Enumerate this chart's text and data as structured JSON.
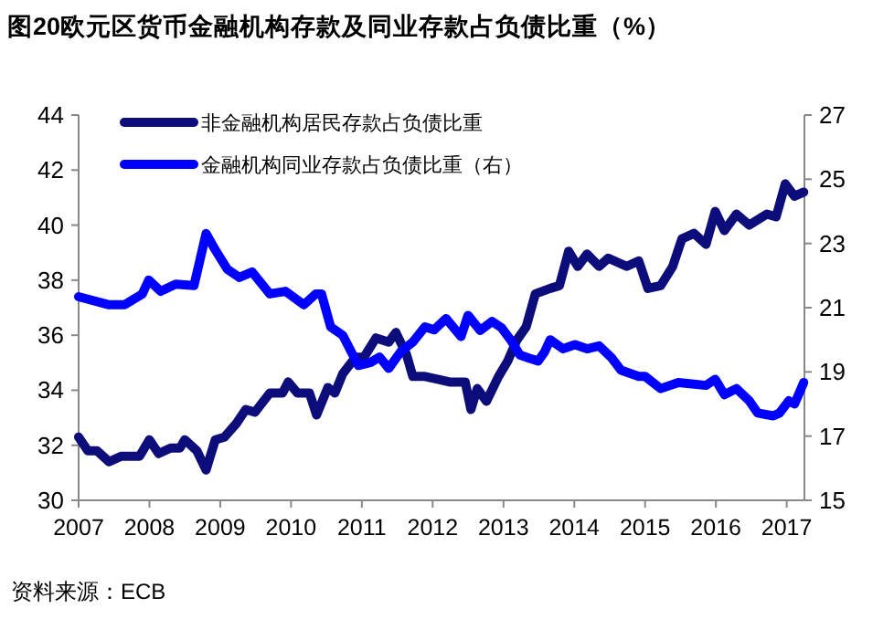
{
  "chart_data": {
    "type": "line",
    "title": "图20欧元区货币金融机构存款及同业存款占负债比重（%）",
    "annotations": [
      "资料来源：ECB"
    ],
    "xlim": [
      2007,
      2017.25
    ],
    "xticks": [
      2007,
      2008,
      2009,
      2010,
      2011,
      2012,
      2013,
      2014,
      2015,
      2016,
      2017
    ],
    "ylim": [
      30,
      44
    ],
    "yticks": [
      30,
      32,
      34,
      36,
      38,
      40,
      42,
      44
    ],
    "y2lim": [
      15,
      27
    ],
    "y2ticks": [
      15,
      17,
      19,
      21,
      23,
      25,
      27
    ],
    "legend": "top left",
    "series": [
      {
        "name": "非金融机构居民存款占负债比重",
        "color": "#0c0c7a",
        "x": [
          2007.0,
          2007.13,
          2007.26,
          2007.43,
          2007.6,
          2007.86,
          2008.0,
          2008.13,
          2008.3,
          2008.43,
          2008.5,
          2008.67,
          2008.8,
          2008.93,
          2009.06,
          2009.23,
          2009.36,
          2009.49,
          2009.7,
          2009.88,
          2009.96,
          2010.09,
          2010.26,
          2010.36,
          2010.52,
          2010.62,
          2010.73,
          2010.91,
          2011.03,
          2011.2,
          2011.38,
          2011.48,
          2011.63,
          2011.72,
          2011.89,
          2012.07,
          2012.24,
          2012.46,
          2012.54,
          2012.63,
          2012.76,
          2012.93,
          2013.06,
          2013.19,
          2013.32,
          2013.45,
          2013.66,
          2013.79,
          2013.92,
          2014.05,
          2014.18,
          2014.35,
          2014.48,
          2014.74,
          2014.91,
          2015.04,
          2015.22,
          2015.39,
          2015.52,
          2015.69,
          2015.86,
          2015.99,
          2016.12,
          2016.29,
          2016.47,
          2016.72,
          2016.85,
          2016.98,
          2017.11,
          2017.24
        ],
        "values": [
          32.3,
          31.8,
          31.8,
          31.4,
          31.6,
          31.6,
          32.2,
          31.7,
          31.9,
          31.9,
          32.2,
          31.8,
          31.1,
          32.2,
          32.3,
          32.8,
          33.3,
          33.2,
          33.9,
          33.9,
          34.3,
          33.9,
          33.9,
          33.1,
          34.1,
          33.9,
          34.6,
          35.2,
          35.2,
          35.9,
          35.75,
          36.1,
          35.3,
          34.5,
          34.5,
          34.4,
          34.3,
          34.3,
          33.3,
          34.06,
          33.6,
          34.5,
          35.06,
          35.83,
          36.3,
          37.5,
          37.7,
          37.8,
          39.05,
          38.5,
          38.95,
          38.5,
          38.8,
          38.5,
          38.7,
          37.7,
          37.8,
          38.5,
          39.5,
          39.7,
          39.3,
          40.5,
          39.8,
          40.4,
          40.0,
          40.4,
          40.3,
          41.5,
          41.05,
          41.2
        ]
      },
      {
        "name": "金融机构同业存款占负债比重（右）",
        "color": "#0000ff",
        "axis": "y2",
        "x": [
          2007.0,
          2007.43,
          2007.65,
          2007.9,
          2007.99,
          2008.16,
          2008.37,
          2008.63,
          2008.8,
          2008.93,
          2009.1,
          2009.27,
          2009.45,
          2009.7,
          2009.92,
          2010.18,
          2010.35,
          2010.43,
          2010.56,
          2010.73,
          2010.95,
          2011.12,
          2011.25,
          2011.38,
          2011.55,
          2011.72,
          2011.89,
          2012.02,
          2012.19,
          2012.4,
          2012.5,
          2012.67,
          2012.84,
          2012.97,
          2013.1,
          2013.23,
          2013.36,
          2013.49,
          2013.58,
          2013.66,
          2013.84,
          2014.01,
          2014.18,
          2014.35,
          2014.53,
          2014.66,
          2014.91,
          2015.0,
          2015.22,
          2015.47,
          2015.86,
          2015.99,
          2016.12,
          2016.29,
          2016.47,
          2016.59,
          2016.81,
          2016.9,
          2017.03,
          2017.11,
          2017.24
        ],
        "values": [
          21.34,
          21.09,
          21.09,
          21.43,
          21.86,
          21.51,
          21.73,
          21.69,
          23.31,
          22.8,
          22.2,
          21.94,
          22.11,
          21.43,
          21.51,
          21.09,
          21.43,
          21.43,
          20.4,
          20.14,
          19.2,
          19.29,
          19.46,
          19.11,
          19.63,
          19.93,
          20.4,
          20.31,
          20.66,
          20.1,
          20.76,
          20.29,
          20.57,
          20.38,
          20.0,
          19.53,
          19.43,
          19.34,
          19.62,
          20.0,
          19.72,
          19.85,
          19.72,
          19.81,
          19.43,
          19.05,
          18.86,
          18.86,
          18.48,
          18.67,
          18.58,
          18.77,
          18.29,
          18.48,
          18.1,
          17.72,
          17.63,
          17.72,
          18.1,
          18.0,
          18.67
        ]
      }
    ]
  }
}
